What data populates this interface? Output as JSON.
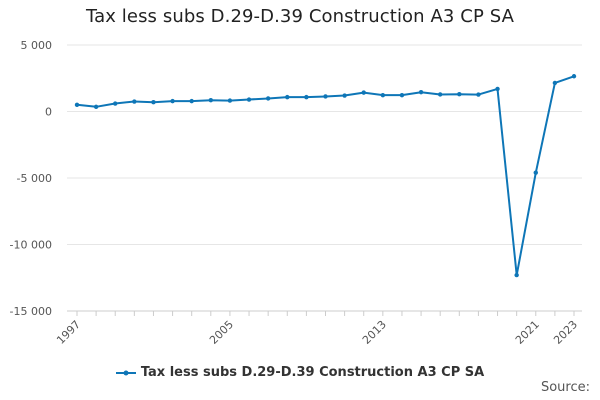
{
  "chart_data": {
    "type": "line",
    "title": "Tax less subs D.29-D.39 Construction A3 CP SA",
    "xlabel": "",
    "ylabel": "",
    "x": [
      "1997",
      "1998",
      "1999",
      "2000",
      "2001",
      "2002",
      "2003",
      "2004",
      "2005",
      "2006",
      "2007",
      "2008",
      "2009",
      "2010",
      "2011",
      "2012",
      "2013",
      "2014",
      "2015",
      "2016",
      "2017",
      "2018",
      "2019",
      "2020",
      "2021",
      "2022",
      "2023"
    ],
    "x_tick_labels": [
      "1997",
      "2005",
      "2013",
      "2021",
      "2023"
    ],
    "y_ticks": [
      5000,
      0,
      -5000,
      -10000,
      -15000
    ],
    "y_tick_labels": [
      "5 000",
      "0",
      "-5 000",
      "-10 000",
      "-15 000"
    ],
    "ylim": [
      -15000,
      5000
    ],
    "grid": "horizontal",
    "legend_position": "bottom",
    "series": [
      {
        "name": "Tax less subs D.29-D.39 Construction A3 CP SA",
        "color": "#0e76b7",
        "values": [
          500,
          350,
          600,
          750,
          700,
          780,
          780,
          850,
          820,
          900,
          980,
          1080,
          1080,
          1130,
          1200,
          1420,
          1230,
          1230,
          1450,
          1280,
          1300,
          1270,
          1700,
          -12300,
          -4600,
          2150,
          2650
        ]
      }
    ]
  },
  "legend": {
    "label": "Tax less subs D.29-D.39 Construction A3 CP SA"
  },
  "footer": {
    "source_label": "Source:"
  }
}
